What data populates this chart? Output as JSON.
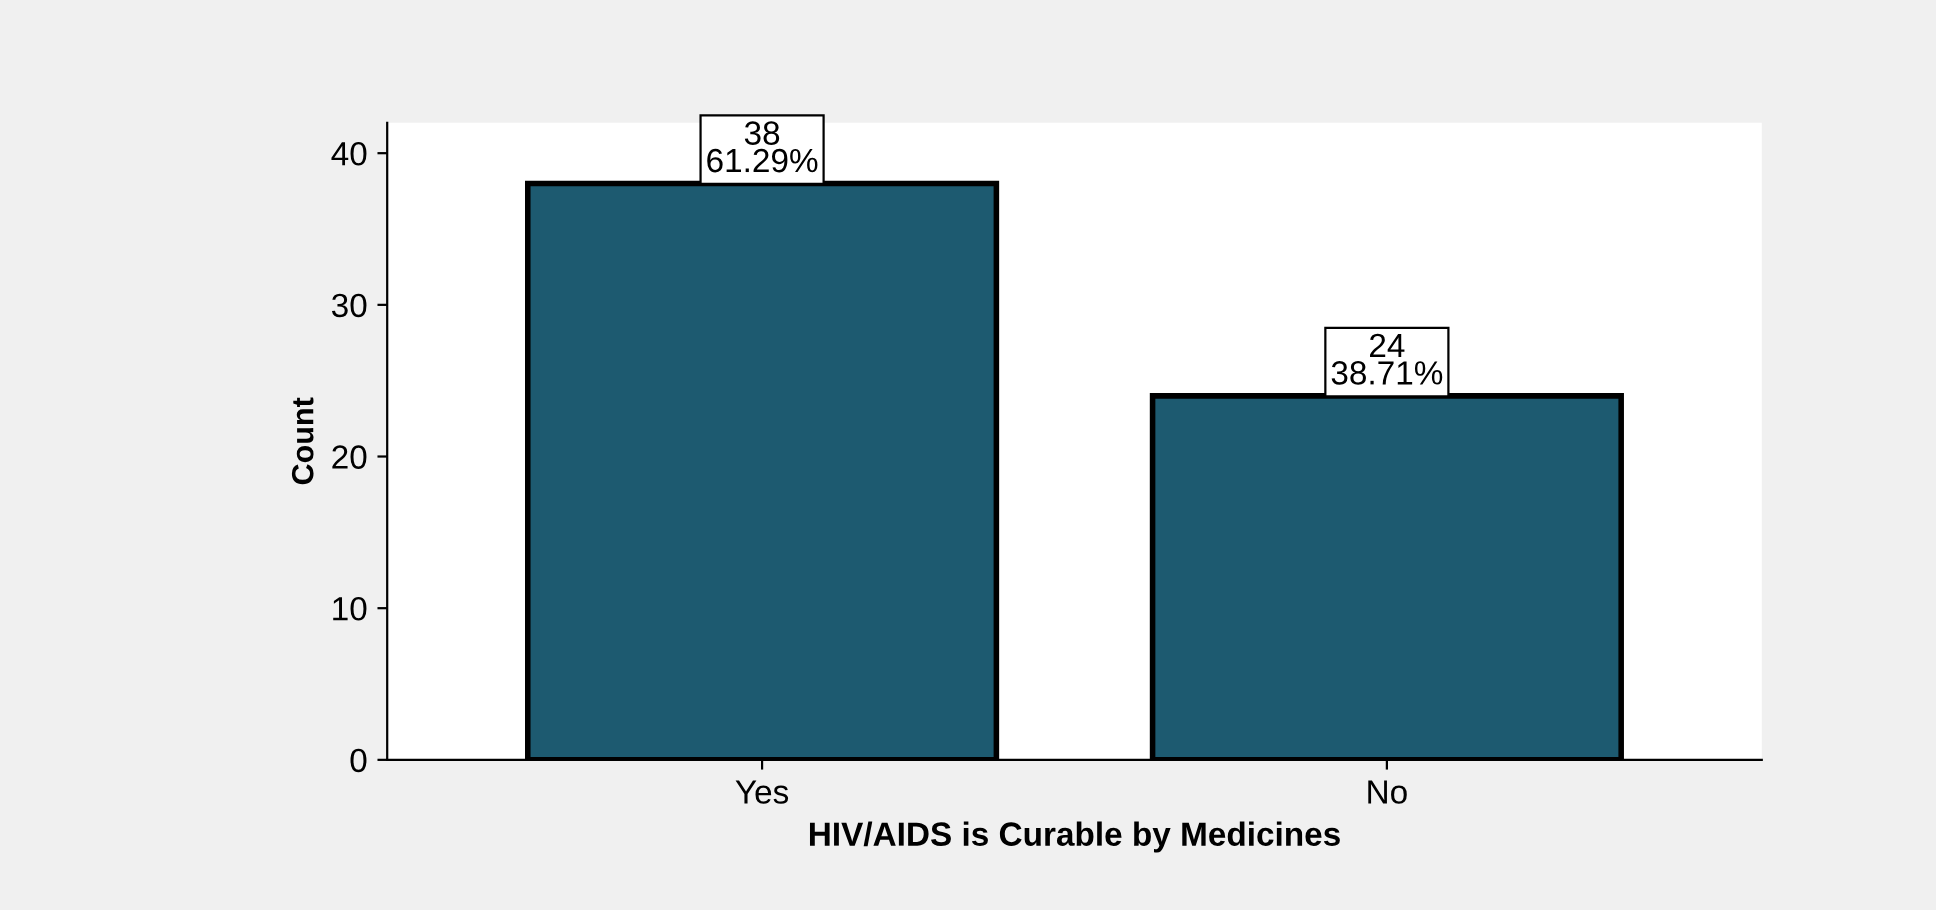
{
  "chart_data": {
    "type": "bar",
    "xlabel": "HIV/AIDS is Curable by Medicines",
    "ylabel": "Count",
    "categories": [
      "Yes",
      "No"
    ],
    "values": [
      38,
      24
    ],
    "value_labels": [
      "38\n61.29%",
      "24\n38.71%"
    ],
    "color": "#1d5a70",
    "ylim": [
      0,
      42
    ],
    "yticks": [
      0,
      10,
      20,
      30,
      40
    ],
    "grid": false
  }
}
